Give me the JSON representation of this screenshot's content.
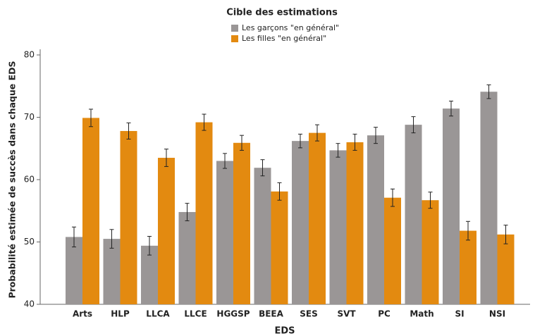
{
  "chart_data": {
    "type": "bar",
    "legend_title": "Cible des estimations",
    "x_label": "EDS",
    "y_label": "Probabilité estimée de succès dans chaque EDS",
    "categories": [
      "Arts",
      "HLP",
      "LLCA",
      "LLCE",
      "HGGSP",
      "BEEA",
      "SES",
      "SVT",
      "PC",
      "Math",
      "SI",
      "NSI"
    ],
    "series": [
      {
        "name": "Les garçons \"en général\"",
        "color": "#9a9696",
        "values": [
          50.8,
          50.5,
          49.4,
          54.8,
          63.0,
          61.9,
          66.2,
          64.7,
          67.1,
          68.8,
          71.4,
          74.1
        ],
        "errors": [
          1.6,
          1.5,
          1.5,
          1.4,
          1.2,
          1.3,
          1.1,
          1.1,
          1.3,
          1.3,
          1.2,
          1.1
        ]
      },
      {
        "name": "Les filles \"en général\"",
        "color": "#e38a10",
        "values": [
          69.9,
          67.8,
          63.5,
          69.2,
          65.9,
          58.1,
          67.5,
          66.0,
          57.1,
          56.7,
          51.8,
          51.2
        ],
        "errors": [
          1.4,
          1.3,
          1.4,
          1.3,
          1.2,
          1.4,
          1.3,
          1.3,
          1.4,
          1.3,
          1.5,
          1.5
        ]
      }
    ],
    "ylim": [
      40,
      80
    ],
    "yticks": [
      40,
      50,
      60,
      70,
      80
    ],
    "grid": false
  }
}
